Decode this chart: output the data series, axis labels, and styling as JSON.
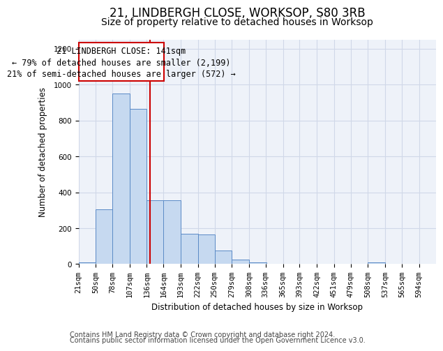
{
  "title": "21, LINDBERGH CLOSE, WORKSOP, S80 3RB",
  "subtitle": "Size of property relative to detached houses in Worksop",
  "xlabel": "Distribution of detached houses by size in Worksop",
  "ylabel": "Number of detached properties",
  "footer_line1": "Contains HM Land Registry data © Crown copyright and database right 2024.",
  "footer_line2": "Contains public sector information licensed under the Open Government Licence v3.0.",
  "annotation_line1": "21 LINDBERGH CLOSE: 141sqm",
  "annotation_line2": "← 79% of detached houses are smaller (2,199)",
  "annotation_line3": "21% of semi-detached houses are larger (572) →",
  "property_size": 141,
  "bar_color": "#c6d9f0",
  "bar_edge_color": "#5a8ac6",
  "vline_color": "#cc0000",
  "annotation_box_color": "#cc0000",
  "grid_color": "#d0d8e8",
  "background_color": "#eef2f9",
  "bins_left": [
    21,
    50,
    78,
    107,
    136,
    164,
    193,
    222,
    250,
    279,
    308,
    336,
    365,
    393,
    422,
    451,
    479,
    508,
    537,
    565
  ],
  "bin_width": 29,
  "bar_heights": [
    10,
    305,
    950,
    865,
    357,
    355,
    170,
    165,
    75,
    25,
    10,
    0,
    0,
    0,
    0,
    0,
    0,
    10,
    0,
    0
  ],
  "ylim": [
    0,
    1250
  ],
  "yticks": [
    0,
    200,
    400,
    600,
    800,
    1000,
    1200
  ],
  "xtick_labels": [
    "21sqm",
    "50sqm",
    "78sqm",
    "107sqm",
    "136sqm",
    "164sqm",
    "193sqm",
    "222sqm",
    "250sqm",
    "279sqm",
    "308sqm",
    "336sqm",
    "365sqm",
    "393sqm",
    "422sqm",
    "451sqm",
    "479sqm",
    "508sqm",
    "537sqm",
    "565sqm",
    "594sqm"
  ],
  "title_fontsize": 12,
  "subtitle_fontsize": 10,
  "axis_fontsize": 8.5,
  "tick_fontsize": 7.5,
  "annotation_fontsize": 8.5,
  "footer_fontsize": 7
}
